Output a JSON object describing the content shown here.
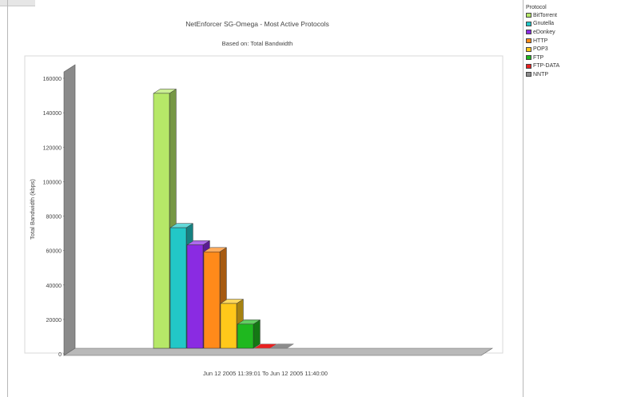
{
  "chart_data": {
    "type": "bar",
    "title": "NetEnforcer SG-Omega - Most Active Protocols",
    "subtitle": "Based on: Total Bandwidth",
    "ylabel": "Total Bandwidth (kbps)",
    "xlabel": "Jun 12 2005  11:39:01  To  Jun 12 2005  11:40:00",
    "ylim": [
      0,
      160000
    ],
    "yticks": [
      "0",
      "20000",
      "40000",
      "60000",
      "80000",
      "100000",
      "120000",
      "140000",
      "160000"
    ],
    "grid": false,
    "legend_position": "right",
    "legend_title": "Protocol",
    "series": [
      {
        "name": "BitTorrent",
        "value": 148000,
        "color": "#b6e868"
      },
      {
        "name": "Gnutella",
        "value": 70000,
        "color": "#22c7c7"
      },
      {
        "name": "eDonkey",
        "value": 60000,
        "color": "#8a2be2"
      },
      {
        "name": "HTTP",
        "value": 56000,
        "color": "#ff8a1a"
      },
      {
        "name": "POP3",
        "value": 26000,
        "color": "#ffc81a"
      },
      {
        "name": "FTP",
        "value": 14000,
        "color": "#1fb81f"
      },
      {
        "name": "FTP-DATA",
        "value": 300,
        "color": "#e82020"
      },
      {
        "name": "NNTP",
        "value": 200,
        "color": "#8c8c8c"
      }
    ]
  }
}
